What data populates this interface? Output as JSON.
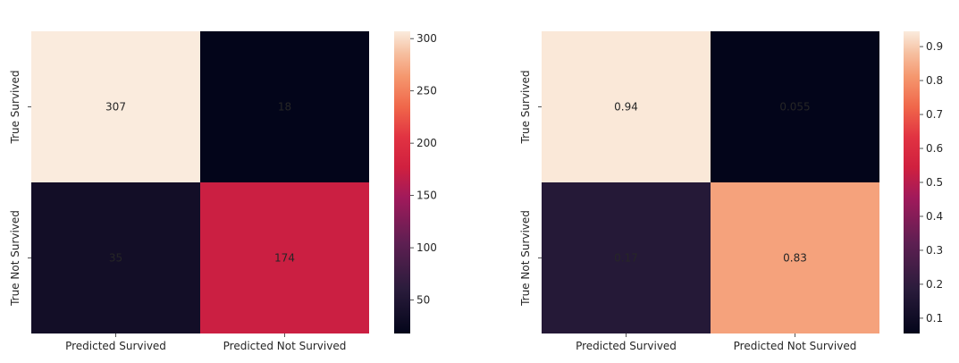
{
  "chart_data": [
    {
      "type": "heatmap",
      "x_categories": [
        "Predicted Survived",
        "Predicted Not Survived"
      ],
      "y_categories": [
        "True Survived",
        "True Not Survived"
      ],
      "values": [
        [
          307,
          18
        ],
        [
          35,
          174
        ]
      ],
      "labels": [
        [
          "307",
          "18"
        ],
        [
          "35",
          "174"
        ]
      ],
      "colorbar": {
        "range": [
          18,
          307
        ],
        "ticks": [
          50,
          100,
          150,
          200,
          250,
          300
        ],
        "tick_labels": [
          "50",
          "100",
          "150",
          "200",
          "250",
          "300"
        ]
      },
      "colormap": "rocket"
    },
    {
      "type": "heatmap",
      "x_categories": [
        "Predicted Survived",
        "Predicted Not Survived"
      ],
      "y_categories": [
        "True Survived",
        "True Not Survived"
      ],
      "values": [
        [
          0.94,
          0.055
        ],
        [
          0.17,
          0.83
        ]
      ],
      "labels": [
        [
          "0.94",
          "0.055"
        ],
        [
          "0.17",
          "0.83"
        ]
      ],
      "colorbar": {
        "range": [
          0.055,
          0.945
        ],
        "ticks": [
          0.1,
          0.2,
          0.3,
          0.4,
          0.5,
          0.6,
          0.7,
          0.8,
          0.9
        ],
        "tick_labels": [
          "0.1",
          "0.2",
          "0.3",
          "0.4",
          "0.5",
          "0.6",
          "0.7",
          "0.8",
          "0.9"
        ]
      },
      "colormap": "rocket"
    }
  ]
}
